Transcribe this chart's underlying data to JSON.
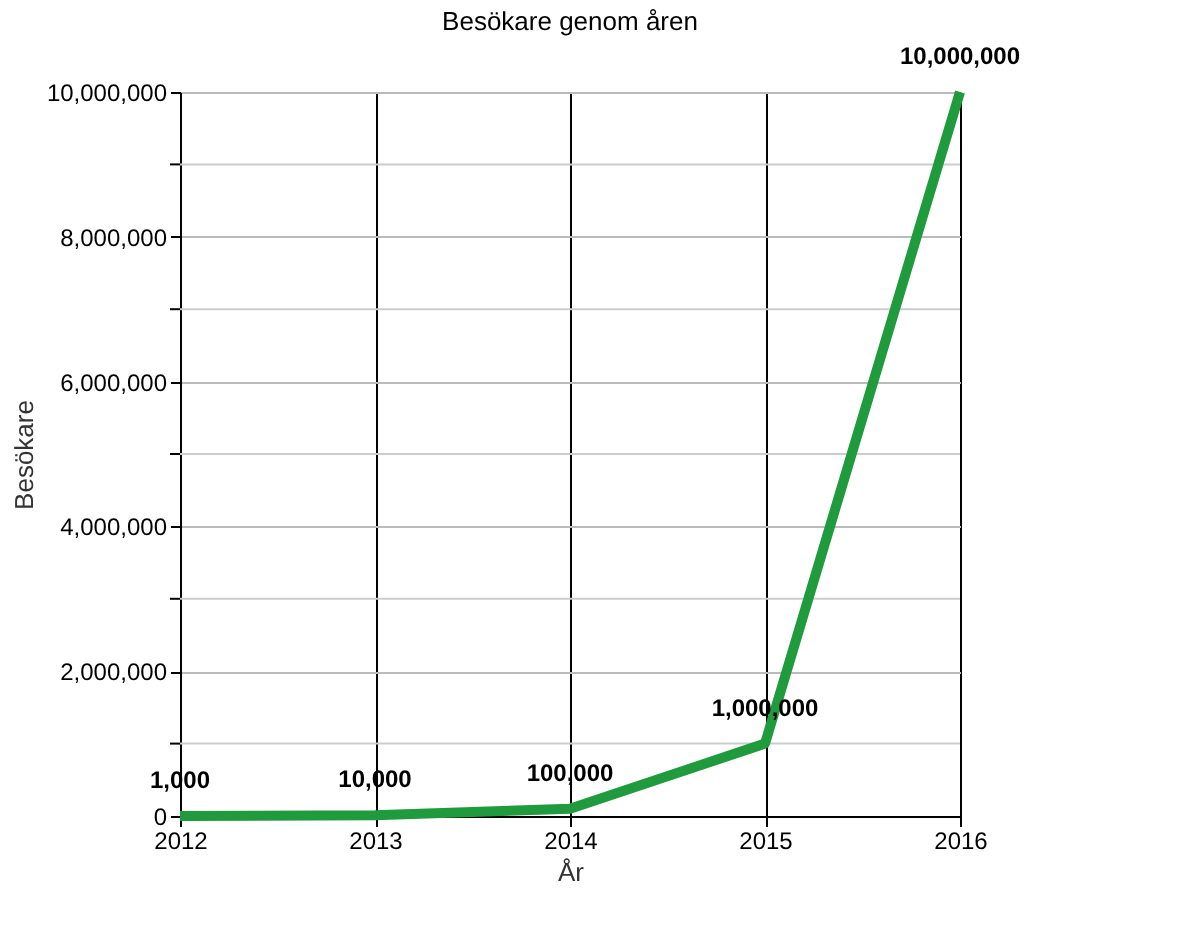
{
  "chart_data": {
    "type": "line",
    "title": "Besökare genom åren",
    "xlabel": "År",
    "ylabel": "Besökare",
    "x": [
      2012,
      2013,
      2014,
      2015,
      2016
    ],
    "series": [
      {
        "color": "#1f9a3c",
        "values": [
          1000,
          10000,
          100000,
          1000000,
          10000000
        ],
        "value_labels": [
          "1,000",
          "10,000",
          "100,000",
          "1,000,000",
          "10,000,000"
        ]
      }
    ],
    "xlim": [
      2012,
      2016
    ],
    "xticks": [
      2012,
      2013,
      2014,
      2015,
      2016
    ],
    "ylim": [
      0,
      10000000
    ],
    "yticks": [
      0,
      {
        "value": 1000000,
        "label": null
      },
      {
        "value": 2000000,
        "label": "2,000,000"
      },
      {
        "value": 3000000,
        "label": null
      },
      {
        "value": 4000000,
        "label": "4,000,000"
      },
      {
        "value": 5000000,
        "label": null
      },
      {
        "value": 6000000,
        "label": "6,000,000"
      },
      {
        "value": 7000000,
        "label": null
      },
      {
        "value": 8000000,
        "label": "8,000,000"
      },
      {
        "value": 9000000,
        "label": null
      },
      {
        "value": 10000000,
        "label": "10,000,000"
      }
    ],
    "grid": true,
    "marker": "none",
    "line_style": "solid"
  }
}
